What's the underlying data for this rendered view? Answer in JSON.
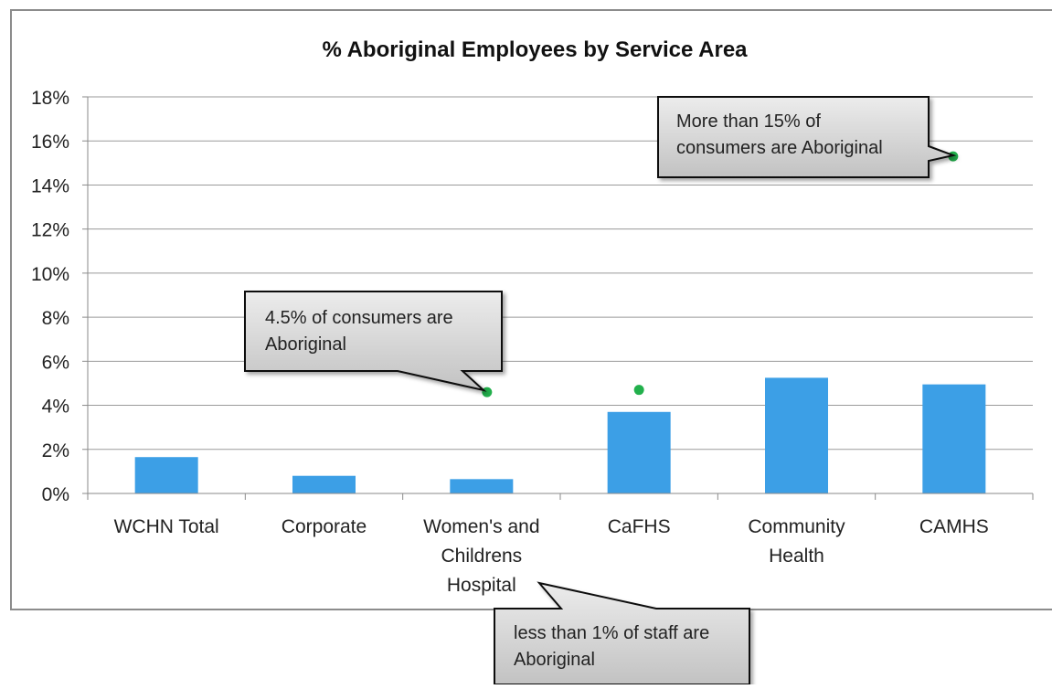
{
  "chart_data": {
    "type": "bar",
    "title": "% Aboriginal Employees by Service Area",
    "xlabel": "",
    "ylabel": "",
    "ylim": [
      0,
      18
    ],
    "yticks": [
      "0%",
      "2%",
      "4%",
      "6%",
      "8%",
      "10%",
      "12%",
      "14%",
      "16%",
      "18%"
    ],
    "categories": [
      [
        "WCHN Total"
      ],
      [
        "Corporate"
      ],
      [
        "Women's and",
        "Childrens",
        "Hospital"
      ],
      [
        "CaFHS"
      ],
      [
        "Community",
        "Health"
      ],
      [
        "CAMHS"
      ]
    ],
    "series": [
      {
        "type": "bar",
        "values": [
          1.65,
          0.8,
          0.65,
          3.7,
          5.25,
          4.95
        ],
        "color": "#3c9fe6"
      },
      {
        "type": "scatter",
        "points": [
          [
            2,
            4.6
          ],
          [
            3,
            4.7
          ],
          [
            5,
            15.3
          ]
        ],
        "color": "#22b04c"
      }
    ],
    "gridlines": true,
    "annotations": [
      [
        "More than 15% of",
        "consumers are Aboriginal"
      ],
      [
        "4.5% of consumers are",
        "Aboriginal"
      ],
      [
        "less than 1% of staff are",
        "Aboriginal"
      ]
    ]
  }
}
